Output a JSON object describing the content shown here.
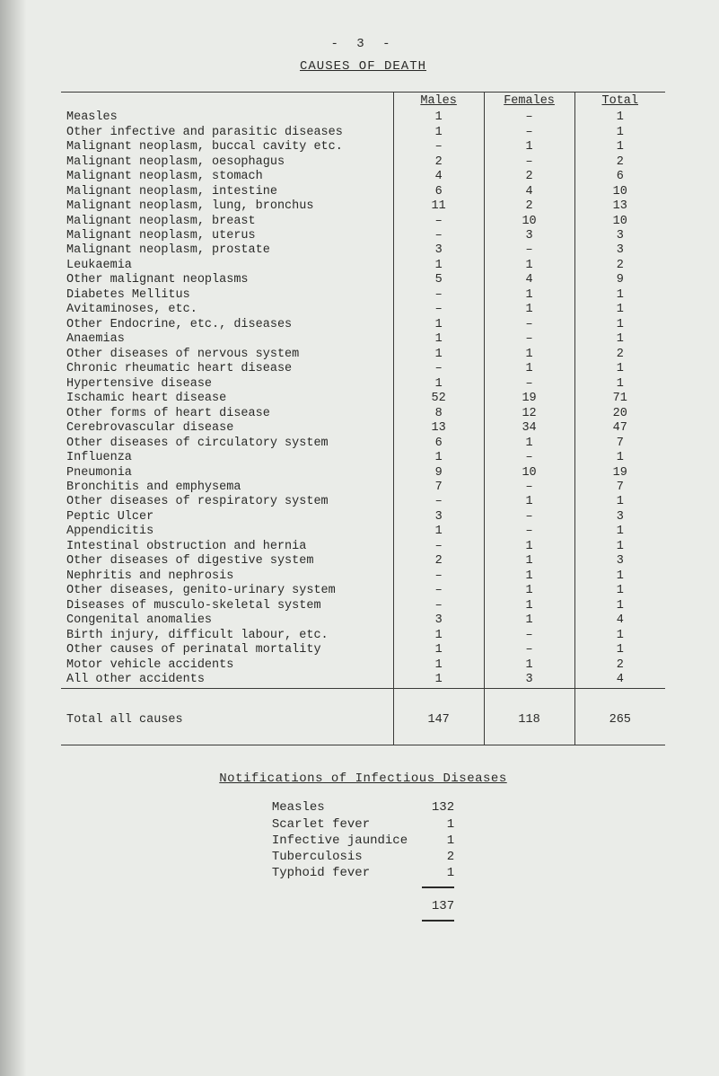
{
  "page_number": "- 3 -",
  "doc_title": "CAUSES OF DEATH",
  "table_headers": {
    "blank": "",
    "males": "Males",
    "females": "Females",
    "total": "Total"
  },
  "rows": [
    {
      "label": "Measles",
      "m": "1",
      "f": "–",
      "t": "1"
    },
    {
      "label": "Other infective and parasitic diseases",
      "m": "1",
      "f": "–",
      "t": "1"
    },
    {
      "label": "Malignant neoplasm, buccal cavity etc.",
      "m": "–",
      "f": "1",
      "t": "1"
    },
    {
      "label": "Malignant neoplasm, oesophagus",
      "m": "2",
      "f": "–",
      "t": "2"
    },
    {
      "label": "Malignant neoplasm, stomach",
      "m": "4",
      "f": "2",
      "t": "6"
    },
    {
      "label": "Malignant neoplasm, intestine",
      "m": "6",
      "f": "4",
      "t": "10"
    },
    {
      "label": "Malignant neoplasm, lung, bronchus",
      "m": "11",
      "f": "2",
      "t": "13"
    },
    {
      "label": "Malignant neoplasm, breast",
      "m": "–",
      "f": "10",
      "t": "10"
    },
    {
      "label": "Malignant neoplasm, uterus",
      "m": "–",
      "f": "3",
      "t": "3"
    },
    {
      "label": "Malignant neoplasm, prostate",
      "m": "3",
      "f": "–",
      "t": "3"
    },
    {
      "label": "Leukaemia",
      "m": "1",
      "f": "1",
      "t": "2"
    },
    {
      "label": "Other malignant neoplasms",
      "m": "5",
      "f": "4",
      "t": "9"
    },
    {
      "label": "Diabetes Mellitus",
      "m": "–",
      "f": "1",
      "t": "1"
    },
    {
      "label": "Avitaminoses, etc.",
      "m": "–",
      "f": "1",
      "t": "1"
    },
    {
      "label": "Other Endocrine, etc., diseases",
      "m": "1",
      "f": "–",
      "t": "1"
    },
    {
      "label": "Anaemias",
      "m": "1",
      "f": "–",
      "t": "1"
    },
    {
      "label": "Other diseases of nervous system",
      "m": "1",
      "f": "1",
      "t": "2"
    },
    {
      "label": "Chronic rheumatic heart disease",
      "m": "–",
      "f": "1",
      "t": "1"
    },
    {
      "label": "Hypertensive disease",
      "m": "1",
      "f": "–",
      "t": "1"
    },
    {
      "label": "Ischamic heart disease",
      "m": "52",
      "f": "19",
      "t": "71"
    },
    {
      "label": "Other forms of heart disease",
      "m": "8",
      "f": "12",
      "t": "20"
    },
    {
      "label": "Cerebrovascular disease",
      "m": "13",
      "f": "34",
      "t": "47"
    },
    {
      "label": "Other diseases of circulatory system",
      "m": "6",
      "f": "1",
      "t": "7"
    },
    {
      "label": "Influenza",
      "m": "1",
      "f": "–",
      "t": "1"
    },
    {
      "label": "Pneumonia",
      "m": "9",
      "f": "10",
      "t": "19"
    },
    {
      "label": "Bronchitis and emphysema",
      "m": "7",
      "f": "–",
      "t": "7"
    },
    {
      "label": "Other diseases of respiratory system",
      "m": "–",
      "f": "1",
      "t": "1"
    },
    {
      "label": "Peptic Ulcer",
      "m": "3",
      "f": "–",
      "t": "3"
    },
    {
      "label": "Appendicitis",
      "m": "1",
      "f": "–",
      "t": "1"
    },
    {
      "label": "Intestinal obstruction and hernia",
      "m": "–",
      "f": "1",
      "t": "1"
    },
    {
      "label": "Other diseases of digestive system",
      "m": "2",
      "f": "1",
      "t": "3"
    },
    {
      "label": "Nephritis and nephrosis",
      "m": "–",
      "f": "1",
      "t": "1"
    },
    {
      "label": "Other diseases, genito-urinary system",
      "m": "–",
      "f": "1",
      "t": "1"
    },
    {
      "label": "Diseases of musculo-skeletal system",
      "m": "–",
      "f": "1",
      "t": "1"
    },
    {
      "label": "Congenital anomalies",
      "m": "3",
      "f": "1",
      "t": "4"
    },
    {
      "label": "Birth injury, difficult labour, etc.",
      "m": "1",
      "f": "–",
      "t": "1"
    },
    {
      "label": "Other causes of perinatal mortality",
      "m": "1",
      "f": "–",
      "t": "1"
    },
    {
      "label": "Motor vehicle accidents",
      "m": "1",
      "f": "1",
      "t": "2"
    },
    {
      "label": "All other accidents",
      "m": "1",
      "f": "3",
      "t": "4"
    }
  ],
  "total_row": {
    "label": "Total all causes",
    "m": "147",
    "f": "118",
    "t": "265"
  },
  "notifications_title": "Notifications of Infectious Diseases",
  "notifications": [
    {
      "label": "Measles",
      "n": "132"
    },
    {
      "label": "Scarlet fever",
      "n": "1"
    },
    {
      "label": "Infective jaundice",
      "n": "1"
    },
    {
      "label": "Tuberculosis",
      "n": "2"
    },
    {
      "label": "Typhoid fever",
      "n": "1"
    }
  ],
  "notifications_total": "137",
  "colors": {
    "background": "#eaece8",
    "text": "#2a2a28",
    "rule": "#3a3a38"
  }
}
